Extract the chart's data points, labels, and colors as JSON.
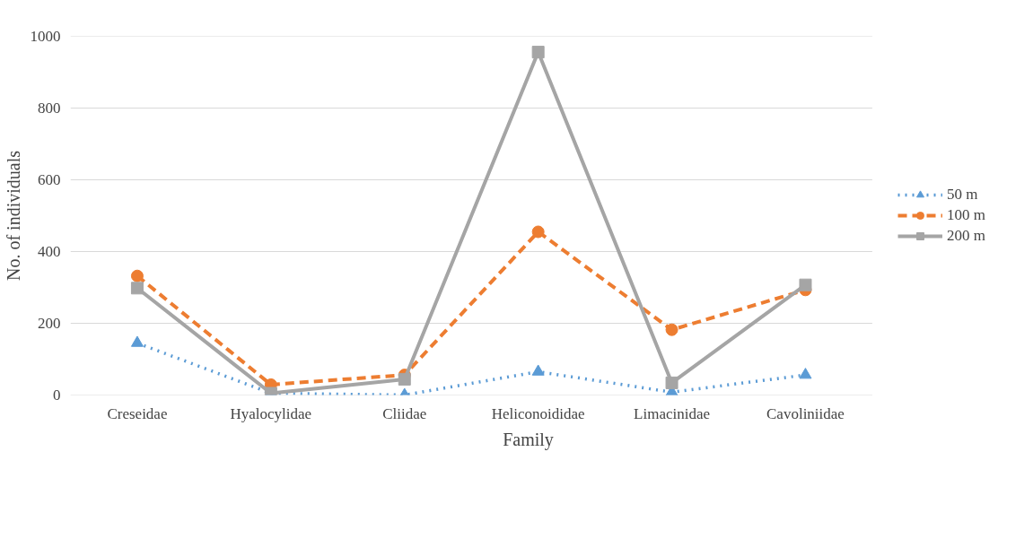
{
  "chart_data": {
    "type": "line",
    "xlabel": "Family",
    "ylabel": "No. of individuals",
    "categories": [
      "Creseidae",
      "Hyalocylidae",
      "Cliidae",
      "Heliconoididae",
      "Limacinidae",
      "Cavoliniidae"
    ],
    "ylim": [
      0,
      1000
    ],
    "yticks": [
      0,
      200,
      400,
      600,
      800,
      1000
    ],
    "grid": "y",
    "legend": "right",
    "series": [
      {
        "name": "50 m",
        "color": "#5b9bd5",
        "marker": "triangle",
        "line_style": "dotted",
        "values": [
          145,
          5,
          0,
          65,
          8,
          56
        ]
      },
      {
        "name": "100 m",
        "color": "#ed7d31",
        "marker": "circle",
        "line_style": "dashed",
        "values": [
          332,
          29,
          56,
          455,
          182,
          293
        ]
      },
      {
        "name": "200 m",
        "color": "#a5a5a5",
        "marker": "square",
        "line_style": "solid",
        "values": [
          298,
          5,
          44,
          956,
          34,
          307
        ]
      }
    ]
  }
}
